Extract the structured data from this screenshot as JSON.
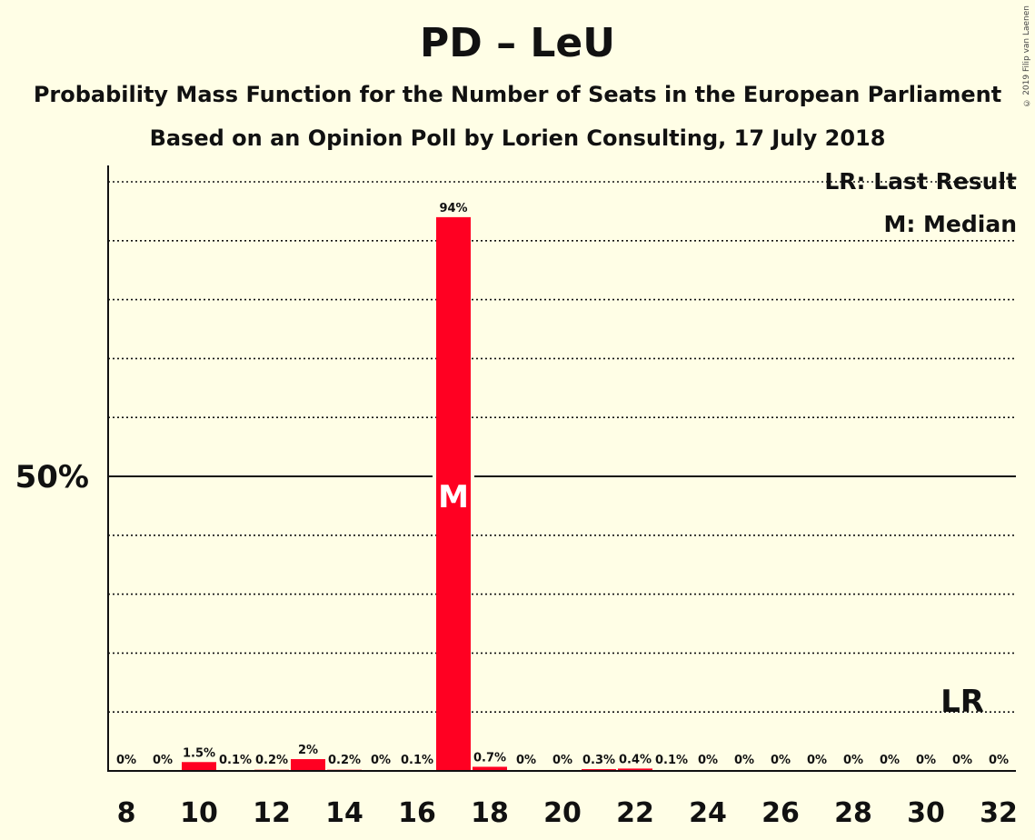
{
  "title": "PD – LeU",
  "subtitle1": "Probability Mass Function for the Number of Seats in the European Parliament",
  "subtitle2": "Based on an Opinion Poll by Lorien Consulting, 17 July 2018",
  "copyright": "© 2019 Filip van Laenen",
  "legend": {
    "last_result": "LR: Last Result",
    "median": "M: Median"
  },
  "chart_data": {
    "type": "bar",
    "x": [
      8,
      9,
      10,
      11,
      12,
      13,
      14,
      15,
      16,
      17,
      18,
      19,
      20,
      21,
      22,
      23,
      24,
      25,
      26,
      27,
      28,
      29,
      30,
      31,
      32
    ],
    "values": [
      0,
      0,
      1.5,
      0.1,
      0.2,
      2,
      0.2,
      0,
      0.1,
      94,
      0.7,
      0,
      0,
      0.3,
      0.4,
      0.1,
      0,
      0,
      0,
      0,
      0,
      0,
      0,
      0,
      0
    ],
    "labels": [
      "0%",
      "0%",
      "1.5%",
      "0.1%",
      "0.2%",
      "2%",
      "0.2%",
      "0%",
      "0.1%",
      "94%",
      "0.7%",
      "0%",
      "0%",
      "0.3%",
      "0.4%",
      "0.1%",
      "0%",
      "0%",
      "0%",
      "0%",
      "0%",
      "0%",
      "0%",
      "0%",
      "0%"
    ],
    "xticks": [
      8,
      10,
      12,
      14,
      16,
      18,
      20,
      22,
      24,
      26,
      28,
      30,
      32
    ],
    "ytick_label": "50%",
    "ylim": [
      0,
      100
    ],
    "grid": "dotted every 10%",
    "median_seat": 17,
    "median_marker": "M",
    "last_result_seat": 31,
    "last_result_marker": "LR",
    "bar_color": "#FF0022"
  }
}
